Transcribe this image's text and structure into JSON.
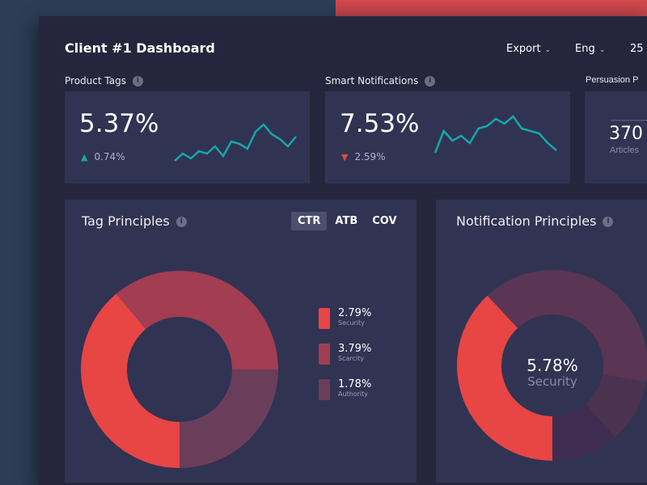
{
  "header": {
    "title": "Client #1 Dashboard",
    "export": "Export",
    "lang": "Eng",
    "date": "25"
  },
  "kpis": [
    {
      "label": "Product Tags",
      "value": "5.37%",
      "delta": "0.74%",
      "dir": "up",
      "spark": [
        0,
        3,
        1,
        4,
        3,
        6,
        2,
        8,
        7,
        5,
        12,
        15,
        11,
        9,
        6,
        10
      ]
    },
    {
      "label": "Smart Notifications",
      "value": "7.53%",
      "delta": "2.59%",
      "dir": "down",
      "spark": [
        0,
        9,
        5,
        7,
        4,
        10,
        11,
        14,
        12,
        15,
        10,
        9,
        8,
        4,
        1
      ]
    },
    {
      "label": "Persuasion P",
      "value": "370",
      "sub": "Articles"
    }
  ],
  "tag_principles": {
    "title": "Tag Principles",
    "tabs": [
      "CTR",
      "ATB",
      "COV"
    ],
    "active_tab": "CTR",
    "legend": [
      {
        "value": "2.79%",
        "name": "Security",
        "color": "#e84545"
      },
      {
        "value": "3.79%",
        "name": "Scarcity",
        "color": "#a23d52"
      },
      {
        "value": "1.78%",
        "name": "Authority",
        "color": "#6a3e5a"
      }
    ]
  },
  "notification_principles": {
    "title": "Notification Principles",
    "center_value": "5.78%",
    "center_label": "Security"
  },
  "colors": {
    "accent": "#13a8ac",
    "red": "#e84545"
  }
}
